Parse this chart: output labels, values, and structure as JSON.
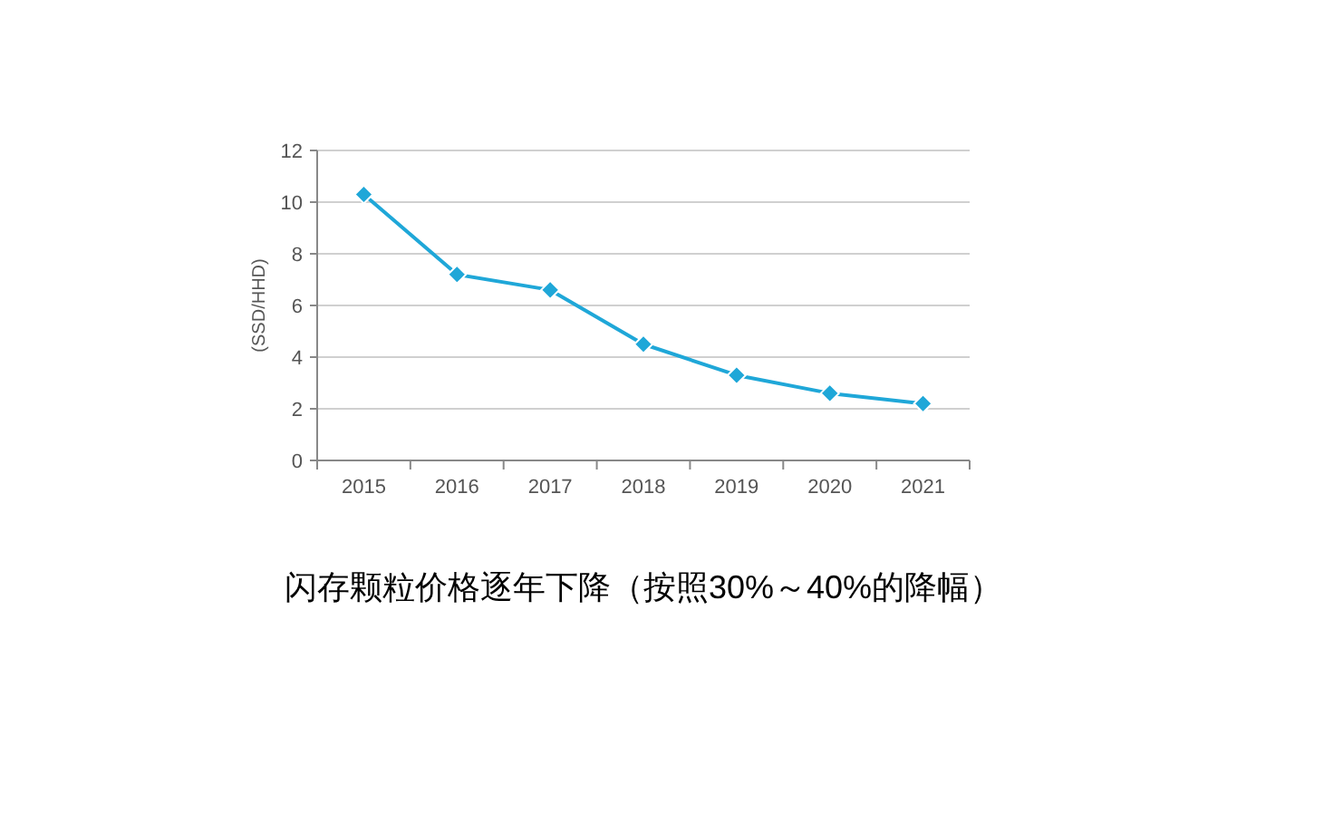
{
  "chart_data": {
    "type": "line",
    "ylabel": "(SSD/HHD)",
    "categories": [
      "2015",
      "2016",
      "2017",
      "2018",
      "2019",
      "2020",
      "2021"
    ],
    "series": [
      {
        "color": "#1fa7d8",
        "values": [
          10.3,
          7.2,
          6.6,
          4.5,
          3.3,
          2.6,
          2.2
        ]
      }
    ],
    "ylim": [
      0,
      12
    ],
    "yticks": [
      0,
      2,
      4,
      6,
      8,
      10,
      12
    ],
    "grid": "y",
    "marker": "diamond",
    "line_style": "solid",
    "annotations": [
      "闪存颗粒价格逐年下降（按照30%～40%的降幅）"
    ]
  }
}
